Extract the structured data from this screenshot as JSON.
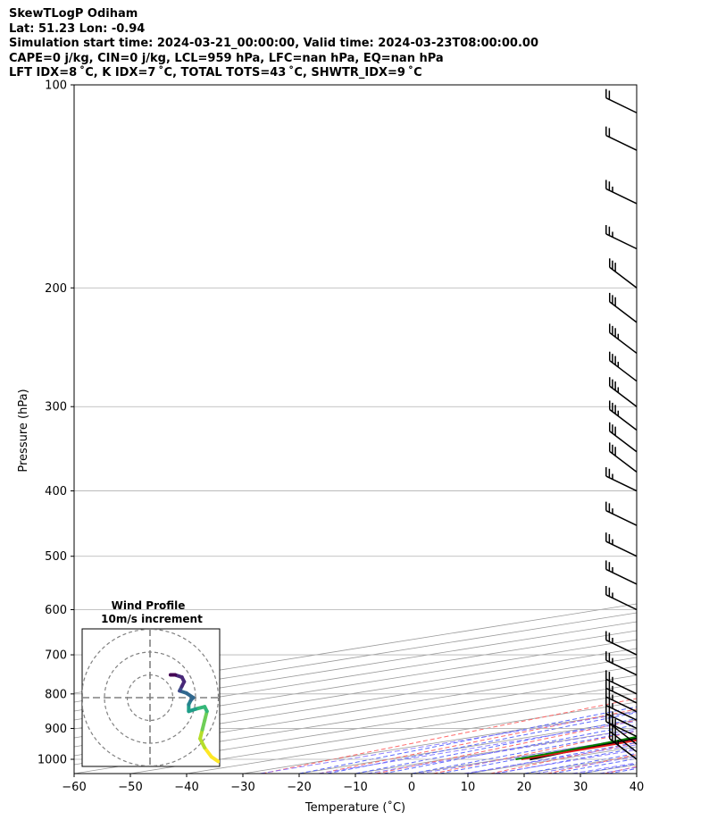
{
  "header": {
    "line1": "SkewTLogP Odiham",
    "line2": "Lat: 51.23   Lon: -0.94",
    "line3": "Simulation start time: 2024-03-21_00:00:00, Valid time: 2024-03-23T08:00:00.00",
    "line4": "CAPE=0 j/kg, CIN=0 j/kg, LCL=959 hPa, LFC=nan hPa, EQ=nan hPa",
    "line5": "LFT IDX=8 ˚C, K IDX=7 ˚C, TOTAL TOTS=43 ˚C, SHWTR_IDX=9 ˚C"
  },
  "colors": {
    "temperature": "#e41a1c",
    "dewpoint": "#008000",
    "parcel": "#000000",
    "shade": "#a1c5de",
    "dry_adiabat": "#ff5a5a",
    "moist_adiabat": "#4a5aff",
    "mixing_ratio": "#7b6cff",
    "isotherm": "#999999",
    "grid": "#b0b0b0"
  },
  "chart_data": [
    {
      "type": "line",
      "subtype": "skew-T log-P diagram",
      "xlabel": "Temperature (˚C)",
      "ylabel": "Pressure (hPa)",
      "xlim": [
        -60,
        40
      ],
      "ylim": [
        1050,
        100
      ],
      "y_scale": "log",
      "x_ticks": [
        "−60",
        "−50",
        "−40",
        "−30",
        "−20",
        "−10",
        "0",
        "10",
        "20",
        "30",
        "40"
      ],
      "y_ticks": [
        "100",
        "200",
        "300",
        "400",
        "500",
        "600",
        "700",
        "800",
        "900",
        "1000"
      ],
      "grid": true,
      "series": [
        {
          "name": "Temperature",
          "points": [
            [
              1000,
              3.5
            ],
            [
              975,
              3.5
            ],
            [
              950,
              3.2
            ],
            [
              925,
              2.2
            ],
            [
              900,
              0.7
            ],
            [
              875,
              -0.6
            ],
            [
              850,
              -2.2
            ],
            [
              825,
              -3.3
            ],
            [
              800,
              -4.3
            ],
            [
              775,
              -5.2
            ],
            [
              750,
              -6.0
            ],
            [
              725,
              -6.8
            ],
            [
              700,
              -7.3
            ],
            [
              675,
              -8.3
            ],
            [
              650,
              -9.5
            ],
            [
              600,
              -11.5
            ],
            [
              550,
              -14.5
            ],
            [
              500,
              -17.8
            ],
            [
              450,
              -23
            ],
            [
              400,
              -29
            ],
            [
              375,
              -32.5
            ],
            [
              350,
              -35.5
            ],
            [
              325,
              -38
            ],
            [
              300,
              -40.5
            ],
            [
              275,
              -43.5
            ],
            [
              250,
              -46.5
            ],
            [
              225,
              -48.5
            ],
            [
              200,
              -49
            ],
            [
              180,
              -49.5
            ],
            [
              160,
              -51
            ],
            [
              150,
              -53
            ],
            [
              140,
              -55
            ],
            [
              125,
              -58
            ],
            [
              110,
              -60.5
            ],
            [
              100,
              -62
            ]
          ]
        },
        {
          "name": "Dewpoint",
          "points": [
            [
              1000,
              2.5
            ],
            [
              975,
              1.8
            ],
            [
              950,
              0.5
            ],
            [
              925,
              -1.2
            ],
            [
              900,
              -4
            ],
            [
              875,
              -7
            ],
            [
              850,
              -9.5
            ],
            [
              825,
              -10
            ],
            [
              800,
              -10
            ],
            [
              750,
              -11
            ],
            [
              700,
              -13
            ],
            [
              650,
              -17
            ],
            [
              600,
              -25
            ],
            [
              550,
              -40
            ],
            [
              500,
              -52
            ],
            [
              450,
              -47
            ],
            [
              425,
              -46
            ],
            [
              400,
              -47
            ],
            [
              350,
              -51
            ],
            [
              300,
              -56
            ],
            [
              250,
              -60
            ],
            [
              225,
              -64
            ],
            [
              200,
              -68
            ],
            [
              175,
              -69
            ],
            [
              150,
              -70
            ],
            [
              125,
              -72.5
            ],
            [
              100,
              -76
            ]
          ]
        },
        {
          "name": "Parcel",
          "points": [
            [
              1000,
              5
            ],
            [
              975,
              3.2
            ],
            [
              959,
              2
            ],
            [
              925,
              0
            ],
            [
              900,
              -1.5
            ],
            [
              850,
              -4.5
            ],
            [
              800,
              -7.5
            ],
            [
              750,
              -11
            ],
            [
              700,
              -14.5
            ],
            [
              650,
              -18.5
            ],
            [
              600,
              -23
            ],
            [
              550,
              -28
            ],
            [
              500,
              -33.5
            ],
            [
              450,
              -39.5
            ],
            [
              400,
              -46
            ],
            [
              350,
              -53.5
            ],
            [
              300,
              -61
            ],
            [
              250,
              -70
            ],
            [
              200,
              -80
            ],
            [
              150,
              -92
            ],
            [
              100,
              -110
            ]
          ]
        }
      ],
      "wind_barbs": [
        {
          "p": 1000,
          "speed_kt": 35
        },
        {
          "p": 975,
          "speed_kt": 30
        },
        {
          "p": 950,
          "speed_kt": 30
        },
        {
          "p": 925,
          "speed_kt": 25
        },
        {
          "p": 900,
          "speed_kt": 25
        },
        {
          "p": 875,
          "speed_kt": 25
        },
        {
          "p": 850,
          "speed_kt": 25
        },
        {
          "p": 825,
          "speed_kt": 25
        },
        {
          "p": 800,
          "speed_kt": 25
        },
        {
          "p": 750,
          "speed_kt": 25
        },
        {
          "p": 700,
          "speed_kt": 25
        },
        {
          "p": 600,
          "speed_kt": 25
        },
        {
          "p": 550,
          "speed_kt": 25
        },
        {
          "p": 500,
          "speed_kt": 25
        },
        {
          "p": 450,
          "speed_kt": 25
        },
        {
          "p": 400,
          "speed_kt": 25
        },
        {
          "p": 375,
          "speed_kt": 30
        },
        {
          "p": 350,
          "speed_kt": 30
        },
        {
          "p": 325,
          "speed_kt": 35
        },
        {
          "p": 300,
          "speed_kt": 35
        },
        {
          "p": 275,
          "speed_kt": 35
        },
        {
          "p": 250,
          "speed_kt": 35
        },
        {
          "p": 225,
          "speed_kt": 30
        },
        {
          "p": 200,
          "speed_kt": 30
        },
        {
          "p": 175,
          "speed_kt": 25
        },
        {
          "p": 150,
          "speed_kt": 25
        },
        {
          "p": 125,
          "speed_kt": 20
        },
        {
          "p": 110,
          "speed_kt": 20
        }
      ]
    },
    {
      "type": "line",
      "subtype": "hodograph",
      "title": "Wind Profile",
      "subtitle": "10m/s increment",
      "rings_m_s": [
        10,
        20,
        30
      ],
      "trace_u_v": [
        [
          30,
          -28
        ],
        [
          27,
          -26
        ],
        [
          24,
          -22
        ],
        [
          22,
          -18
        ],
        [
          23,
          -14
        ],
        [
          24,
          -10
        ],
        [
          25,
          -6
        ],
        [
          24,
          -4
        ],
        [
          20,
          -5
        ],
        [
          17,
          -6
        ],
        [
          17,
          -3
        ],
        [
          18,
          -1
        ],
        [
          19,
          0
        ],
        [
          16,
          2
        ],
        [
          13,
          3
        ],
        [
          14,
          5
        ],
        [
          15,
          7
        ],
        [
          14,
          9
        ],
        [
          11,
          10
        ],
        [
          9,
          10
        ]
      ]
    }
  ]
}
